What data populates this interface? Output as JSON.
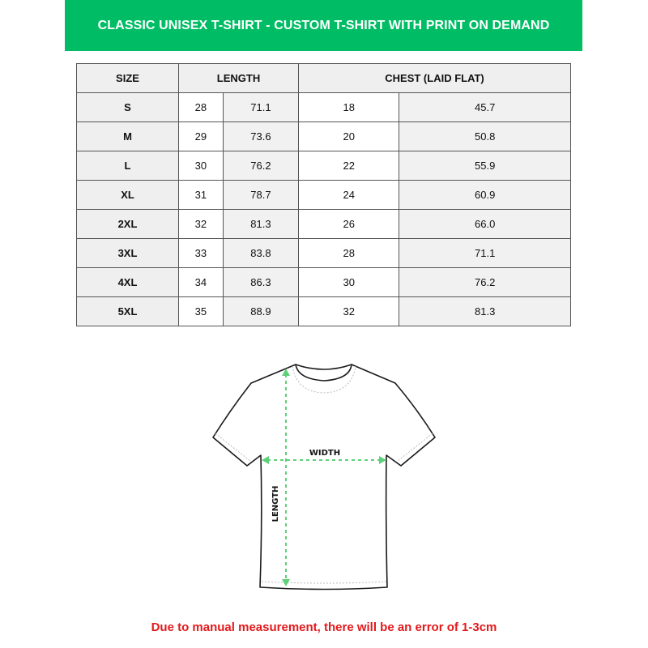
{
  "title": "CLASSIC UNISEX T-SHIRT - CUSTOM T-SHIRT WITH PRINT ON DEMAND",
  "table": {
    "headers": [
      "SIZE",
      "LENGTH",
      "CHEST (LAID FLAT)"
    ],
    "rows": [
      [
        "S",
        "28",
        "71.1",
        "18",
        "45.7"
      ],
      [
        "M",
        "29",
        "73.6",
        "20",
        "50.8"
      ],
      [
        "L",
        "30",
        "76.2",
        "22",
        "55.9"
      ],
      [
        "XL",
        "31",
        "78.7",
        "24",
        "60.9"
      ],
      [
        "2XL",
        "32",
        "81.3",
        "26",
        "66.0"
      ],
      [
        "3XL",
        "33",
        "83.8",
        "28",
        "71.1"
      ],
      [
        "4XL",
        "34",
        "86.3",
        "30",
        "76.2"
      ],
      [
        "5XL",
        "35",
        "88.9",
        "32",
        "81.3"
      ]
    ]
  },
  "diagram": {
    "width_label": "WIDTH",
    "length_label": "LENGTH",
    "arrow_color": "#5fd07a"
  },
  "note": "Due to manual measurement, there will be an error of 1-3cm"
}
